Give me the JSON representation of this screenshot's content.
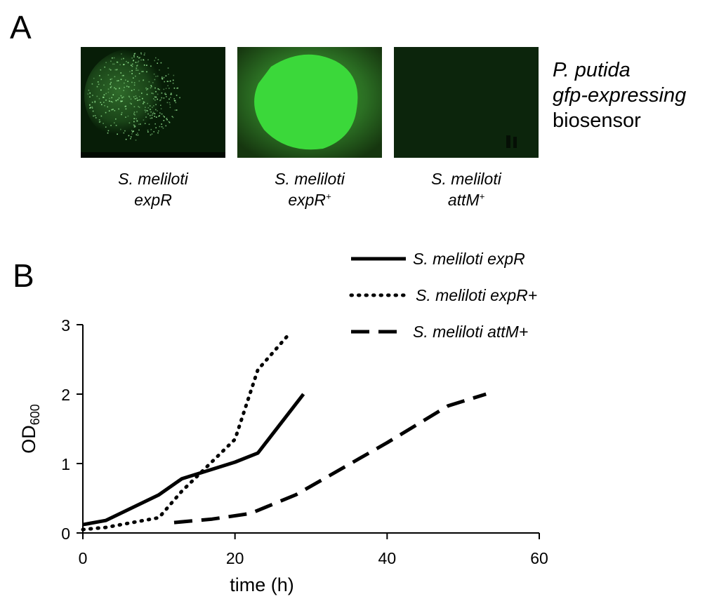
{
  "panel_a": {
    "label": "A",
    "tiles": [
      {
        "caption_line1": "S. meliloti",
        "caption_line2": "expR",
        "caption_sup": ""
      },
      {
        "caption_line1": "S. meliloti",
        "caption_line2": "expR",
        "caption_sup": "+"
      },
      {
        "caption_line1": "S. meliloti",
        "caption_line2": "attM",
        "caption_sup": "+"
      }
    ],
    "biosensor_label": {
      "line1": "P. putida",
      "line2": "gfp-expressing",
      "line3": "biosensor"
    },
    "colors": {
      "fluorescence": "#33d633",
      "dark_background": "#0a220a"
    }
  },
  "panel_b": {
    "label": "B"
  },
  "chart_data": {
    "type": "line",
    "xlabel": "time (h)",
    "ylabel_main": "OD",
    "ylabel_sub": "600",
    "xlim": [
      0,
      60
    ],
    "ylim": [
      0,
      3
    ],
    "xticks": [
      "0",
      "20",
      "40",
      "60"
    ],
    "yticks": [
      "0",
      "1",
      "2",
      "3"
    ],
    "grid": false,
    "legend_position": "top-right",
    "series": [
      {
        "name": "S. meliloti expR",
        "style": "solid",
        "x": [
          0,
          3,
          10,
          13,
          20,
          23,
          29
        ],
        "y": [
          0.12,
          0.18,
          0.55,
          0.78,
          1.02,
          1.15,
          2.0
        ]
      },
      {
        "name": "S. meliloti expR+",
        "style": "dotted",
        "x": [
          0,
          3,
          10,
          13,
          20,
          23,
          27
        ],
        "y": [
          0.05,
          0.08,
          0.22,
          0.6,
          1.35,
          2.35,
          2.85
        ]
      },
      {
        "name": "S. meliloti attM+",
        "style": "dashed",
        "x": [
          12,
          17,
          22,
          28,
          40,
          48,
          53
        ],
        "y": [
          0.15,
          0.2,
          0.28,
          0.55,
          1.3,
          1.83,
          2.0
        ]
      }
    ]
  }
}
